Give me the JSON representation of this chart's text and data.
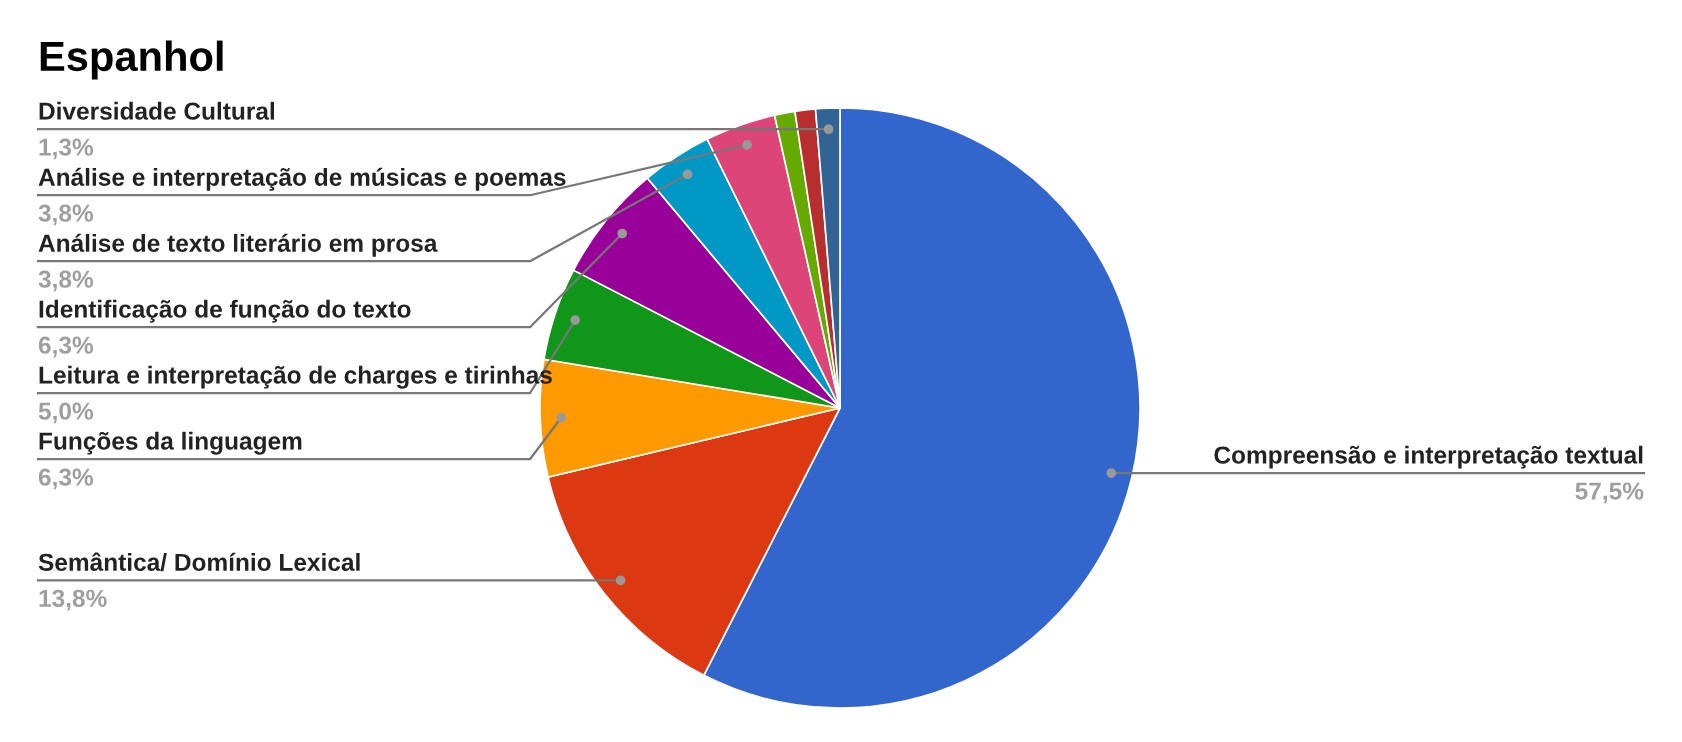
{
  "chart_data": {
    "type": "pie",
    "title": "Espanhol",
    "categories": [
      "Compreensão e interpretação textual",
      "Semântica/ Domínio Lexical",
      "Funções da linguagem",
      "Leitura e interpretação de charges e tirinhas",
      "Identificação de função do texto",
      "Análise de texto literário em prosa",
      "Análise e interpretação de músicas e poemas",
      null,
      null,
      "Diversidade Cultural"
    ],
    "values": [
      57.5,
      13.8,
      6.3,
      5.0,
      6.3,
      3.8,
      3.8,
      1.1,
      1.1,
      1.3
    ],
    "value_labels": [
      "57,5%",
      "13,8%",
      "6,3%",
      "5,0%",
      "6,3%",
      "3,8%",
      "3,8%",
      null,
      null,
      "1,3%"
    ],
    "colors": [
      "#3366cc",
      "#dc3912",
      "#ff9900",
      "#109618",
      "#990099",
      "#0099c6",
      "#dd4477",
      "#66aa00",
      "#b82e2e",
      "#316395"
    ]
  }
}
